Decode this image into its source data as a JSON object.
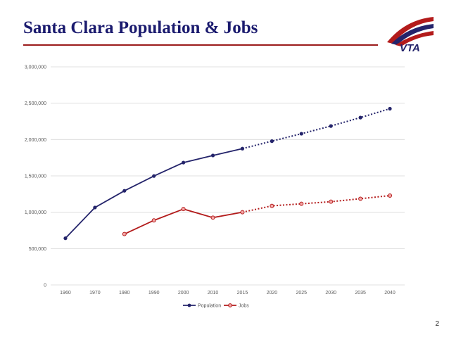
{
  "slide": {
    "title": "Santa Clara Population & Jobs",
    "page_number": "2",
    "logo_text": "VTA",
    "colors": {
      "title": "#1a1a6e",
      "rule": "#9b1b1b",
      "population": "#24246b",
      "jobs": "#b31b1b"
    }
  },
  "chart_data": {
    "type": "line",
    "title": "",
    "xlabel": "",
    "ylabel": "",
    "categories": [
      "1960",
      "1970",
      "1980",
      "1990",
      "2000",
      "2010",
      "2015",
      "2020",
      "2025",
      "2030",
      "2035",
      "2040"
    ],
    "ylim": [
      0,
      3000000
    ],
    "yticks": [
      0,
      500000,
      1000000,
      1500000,
      2000000,
      2500000,
      3000000
    ],
    "ytick_labels": [
      "0",
      "500,000",
      "1,000,000",
      "1,500,000",
      "2,000,000",
      "2,500,000",
      "3,000,000"
    ],
    "grid": true,
    "legend": "bottom",
    "projection_starts_at": "2015",
    "series": [
      {
        "name": "Population",
        "color": "#24246b",
        "values": [
          642000,
          1065000,
          1295000,
          1498000,
          1683000,
          1781000,
          1875000,
          1978000,
          2080000,
          2186000,
          2302000,
          2424000
        ]
      },
      {
        "name": "Jobs",
        "color": "#b31b1b",
        "values": [
          null,
          null,
          700000,
          888000,
          1044000,
          926000,
          1000000,
          1088000,
          1116000,
          1145000,
          1186000,
          1229000
        ]
      }
    ]
  }
}
